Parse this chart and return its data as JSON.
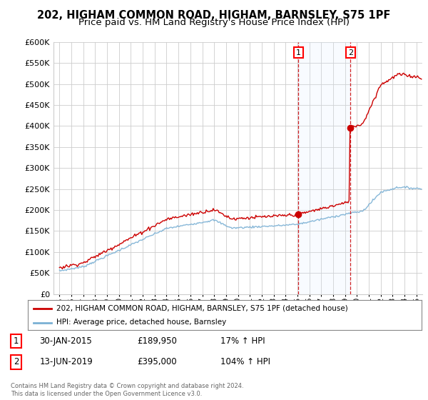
{
  "title": "202, HIGHAM COMMON ROAD, HIGHAM, BARNSLEY, S75 1PF",
  "subtitle": "Price paid vs. HM Land Registry's House Price Index (HPI)",
  "ylim": [
    0,
    600000
  ],
  "yticks": [
    0,
    50000,
    100000,
    150000,
    200000,
    250000,
    300000,
    350000,
    400000,
    450000,
    500000,
    550000,
    600000
  ],
  "xlim_start": 1994.5,
  "xlim_end": 2025.5,
  "hpi_color": "#7ab0d4",
  "property_color": "#cc0000",
  "shade_color": "#ddeeff",
  "sale1_x": 2015.08,
  "sale1_y": 189950,
  "sale2_x": 2019.45,
  "sale2_y": 395000,
  "legend_property": "202, HIGHAM COMMON ROAD, HIGHAM, BARNSLEY, S75 1PF (detached house)",
  "legend_hpi": "HPI: Average price, detached house, Barnsley",
  "background_color": "#ffffff",
  "grid_color": "#cccccc",
  "title_fontsize": 10.5,
  "subtitle_fontsize": 9.5
}
